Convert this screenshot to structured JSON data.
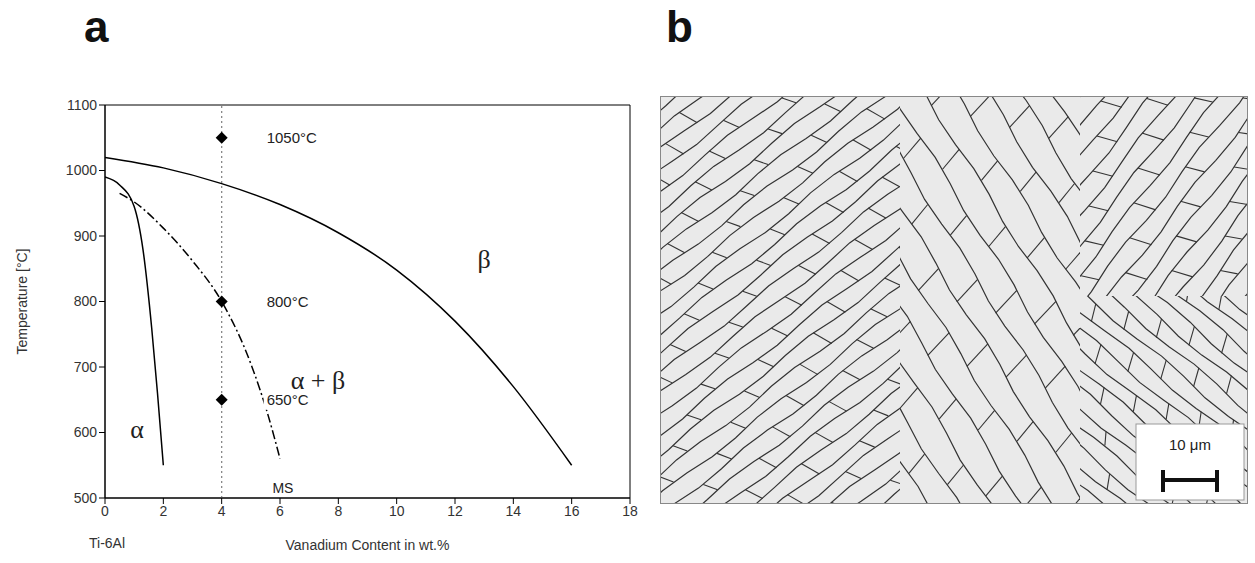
{
  "chart_data": {
    "type": "line",
    "panel": "a",
    "xlabel": "Vanadium Content in wt.%",
    "xlabel_origin": "Ti-6Al",
    "ylabel": "Temperature [°C]",
    "xlim": [
      0,
      18
    ],
    "xticks": [
      0,
      2,
      4,
      6,
      8,
      10,
      12,
      14,
      16,
      18
    ],
    "ylim": [
      500,
      1100
    ],
    "yticks": [
      500,
      600,
      700,
      800,
      900,
      1000,
      1100
    ],
    "series": [
      {
        "type": "line",
        "color": "#000000",
        "line_style": "solid",
        "x": [
          0,
          2,
          4,
          6,
          8,
          10,
          12,
          14,
          16
        ],
        "values": [
          1020,
          1004,
          980,
          948,
          905,
          848,
          770,
          670,
          550
        ]
      },
      {
        "type": "line",
        "color": "#000000",
        "line_style": "solid",
        "x": [
          0,
          0.5,
          1,
          1.3,
          1.6,
          1.8,
          2
        ],
        "values": [
          990,
          978,
          945,
          880,
          760,
          660,
          550
        ]
      },
      {
        "type": "line",
        "color": "#000000",
        "line_style": "dashdot",
        "x": [
          0.5,
          1,
          2,
          3,
          4,
          5,
          5.6,
          6
        ],
        "values": [
          965,
          952,
          912,
          862,
          800,
          705,
          625,
          560
        ]
      },
      {
        "type": "scatter",
        "color": "#000000",
        "marker": "diamond",
        "data_labels": true,
        "x": [
          4,
          4,
          4
        ],
        "values": [
          1050,
          800,
          650
        ],
        "value_labels": [
          "1050°C",
          "800°C",
          "650°C"
        ]
      }
    ],
    "vertical_line": {
      "x": 4,
      "line_style": "dotted",
      "color": "#888888"
    },
    "annotations": [
      {
        "text": "α",
        "x": 1.1,
        "y": 605
      },
      {
        "text": "α + β",
        "x": 7.3,
        "y": 680
      },
      {
        "text": "β",
        "x": 13,
        "y": 865
      },
      {
        "text": "MS",
        "x": 6.1,
        "y": 515
      }
    ]
  },
  "micrograph": {
    "panel": "b",
    "scale_bar": "10 μm"
  }
}
